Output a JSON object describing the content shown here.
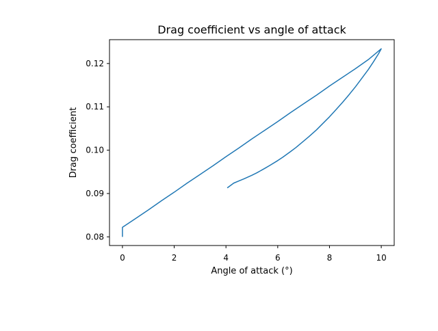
{
  "chart_data": {
    "type": "line",
    "title": "Drag coefficient vs angle of attack",
    "xlabel": "Angle of attack (°)",
    "ylabel": "Drag coefficient",
    "xlim": [
      -0.5,
      10.5
    ],
    "ylim": [
      0.078,
      0.1255
    ],
    "x_ticks": [
      0,
      2,
      4,
      6,
      8,
      10
    ],
    "x_tick_labels": [
      "0",
      "2",
      "4",
      "6",
      "8",
      "10"
    ],
    "y_ticks": [
      0.08,
      0.09,
      0.1,
      0.11,
      0.12
    ],
    "y_tick_labels": [
      "0.08",
      "0.09",
      "0.10",
      "0.11",
      "0.12"
    ],
    "grid": false,
    "line_color": "#1f77b4",
    "series": [
      {
        "x": [
          0.0,
          0.0,
          0.5,
          1.0,
          1.5,
          2.0,
          2.5,
          3.0,
          3.5,
          4.0,
          4.5,
          5.0,
          5.5,
          6.0,
          6.5,
          7.0,
          7.5,
          8.0,
          8.5,
          9.0,
          9.5,
          10.0,
          9.9,
          9.7,
          9.5,
          9.2,
          9.0,
          8.7,
          8.5,
          8.2,
          8.0,
          7.7,
          7.5,
          7.2,
          7.0,
          6.7,
          6.5,
          6.2,
          6.0,
          5.7,
          5.5,
          5.2,
          5.0,
          4.7,
          4.5,
          4.3,
          4.05
        ],
        "y": [
          0.08,
          0.0822,
          0.0842,
          0.0862,
          0.0883,
          0.0903,
          0.0924,
          0.0944,
          0.0964,
          0.0985,
          0.1005,
          0.1026,
          0.1046,
          0.1066,
          0.1087,
          0.1107,
          0.1127,
          0.1148,
          0.1168,
          0.1188,
          0.1209,
          0.1234,
          0.1223,
          0.1204,
          0.1186,
          0.1162,
          0.1146,
          0.1124,
          0.111,
          0.109,
          0.1077,
          0.1059,
          0.1047,
          0.1031,
          0.1021,
          0.1006,
          0.0997,
          0.0984,
          0.0976,
          0.0965,
          0.0958,
          0.0948,
          0.0942,
          0.0934,
          0.0929,
          0.0924,
          0.0913
        ]
      }
    ]
  }
}
